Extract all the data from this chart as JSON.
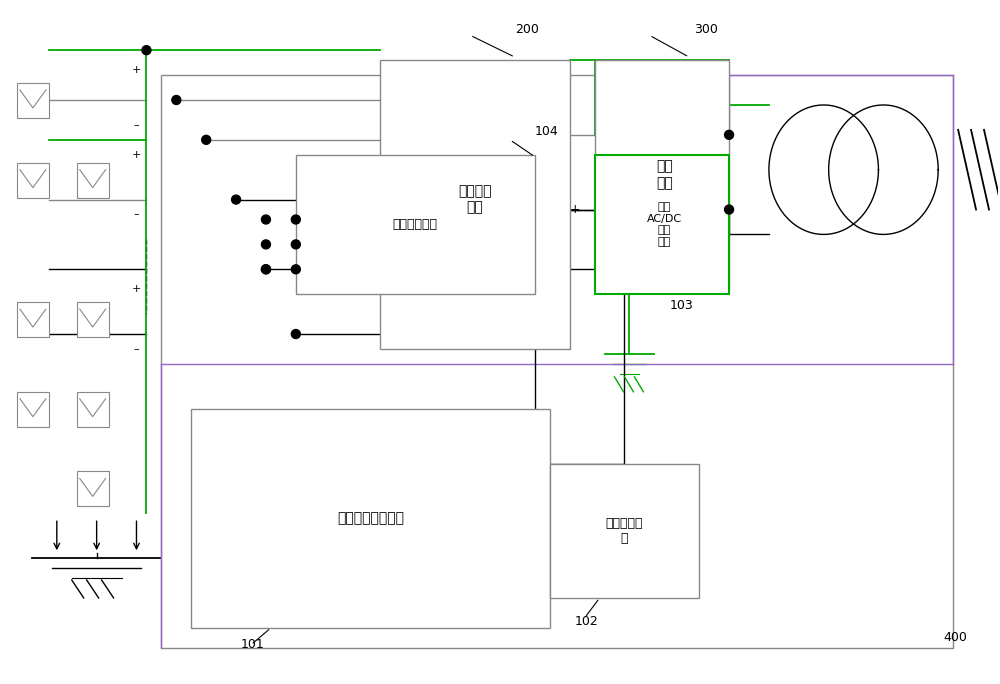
{
  "bg_color": "#ffffff",
  "line_color": "#000000",
  "green_line": "#00aa00",
  "purple_line": "#9966cc",
  "gray_line": "#888888",
  "fig_width": 10.0,
  "fig_height": 6.84,
  "labels": {
    "power_unit": "功率变换\n单元",
    "filter_unit": "滤波\n单元",
    "switch_unit": "投切防护单元",
    "dc_sample": "直流电压采样单元",
    "process_ctrl": "处理控制单\n元",
    "iso_acdc": "隔离\nAC/DC\n变换\n单元",
    "ref_200": "200",
    "ref_300": "300",
    "ref_104": "104",
    "ref_103": "103",
    "ref_102": "102",
    "ref_101": "101",
    "ref_400": "400"
  }
}
